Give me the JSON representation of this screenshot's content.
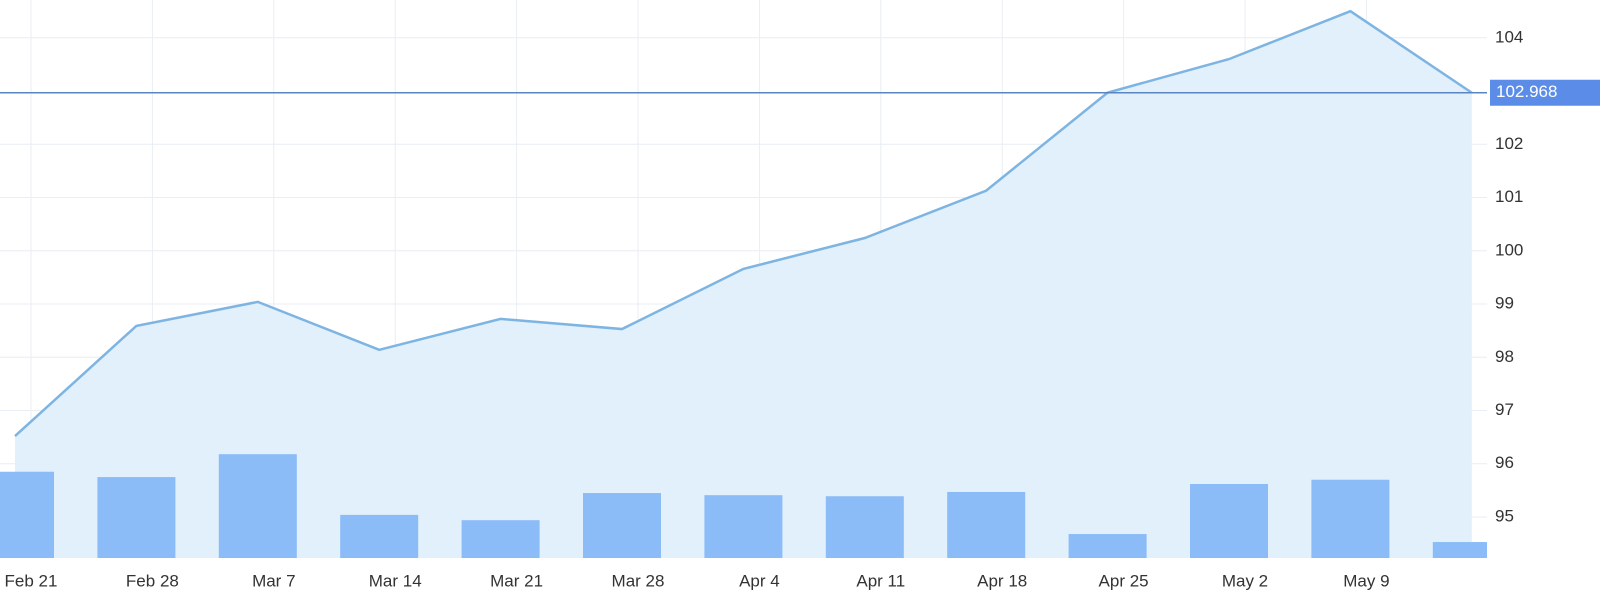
{
  "chart_data": {
    "type": "line",
    "categories": [
      "Feb 21",
      "Feb 28",
      "Mar 7",
      "Mar 14",
      "Mar 21",
      "Mar 28",
      "Apr 4",
      "Apr 11",
      "Apr 18",
      "Apr 25",
      "May 2",
      "May 9",
      null
    ],
    "series": [
      {
        "type": "line",
        "color": "#7eb4e2",
        "fill": "#e1f0fb",
        "values": [
          96.52,
          98.59,
          99.04,
          98.14,
          98.72,
          98.53,
          99.66,
          100.24,
          101.13,
          102.97,
          103.6,
          104.5,
          102.968
        ]
      },
      {
        "type": "bar",
        "color": "#8bbcf8",
        "values": [
          95.85,
          95.75,
          96.18,
          95.04,
          94.94,
          95.45,
          95.41,
          95.39,
          95.47,
          94.68,
          95.62,
          95.7,
          94.53
        ]
      }
    ],
    "ylim": [
      94.23,
      104.71
    ],
    "yticks": [
      95,
      96,
      97,
      98,
      99,
      100,
      101,
      102,
      104
    ],
    "current_value": 102.968,
    "grid": true
  }
}
